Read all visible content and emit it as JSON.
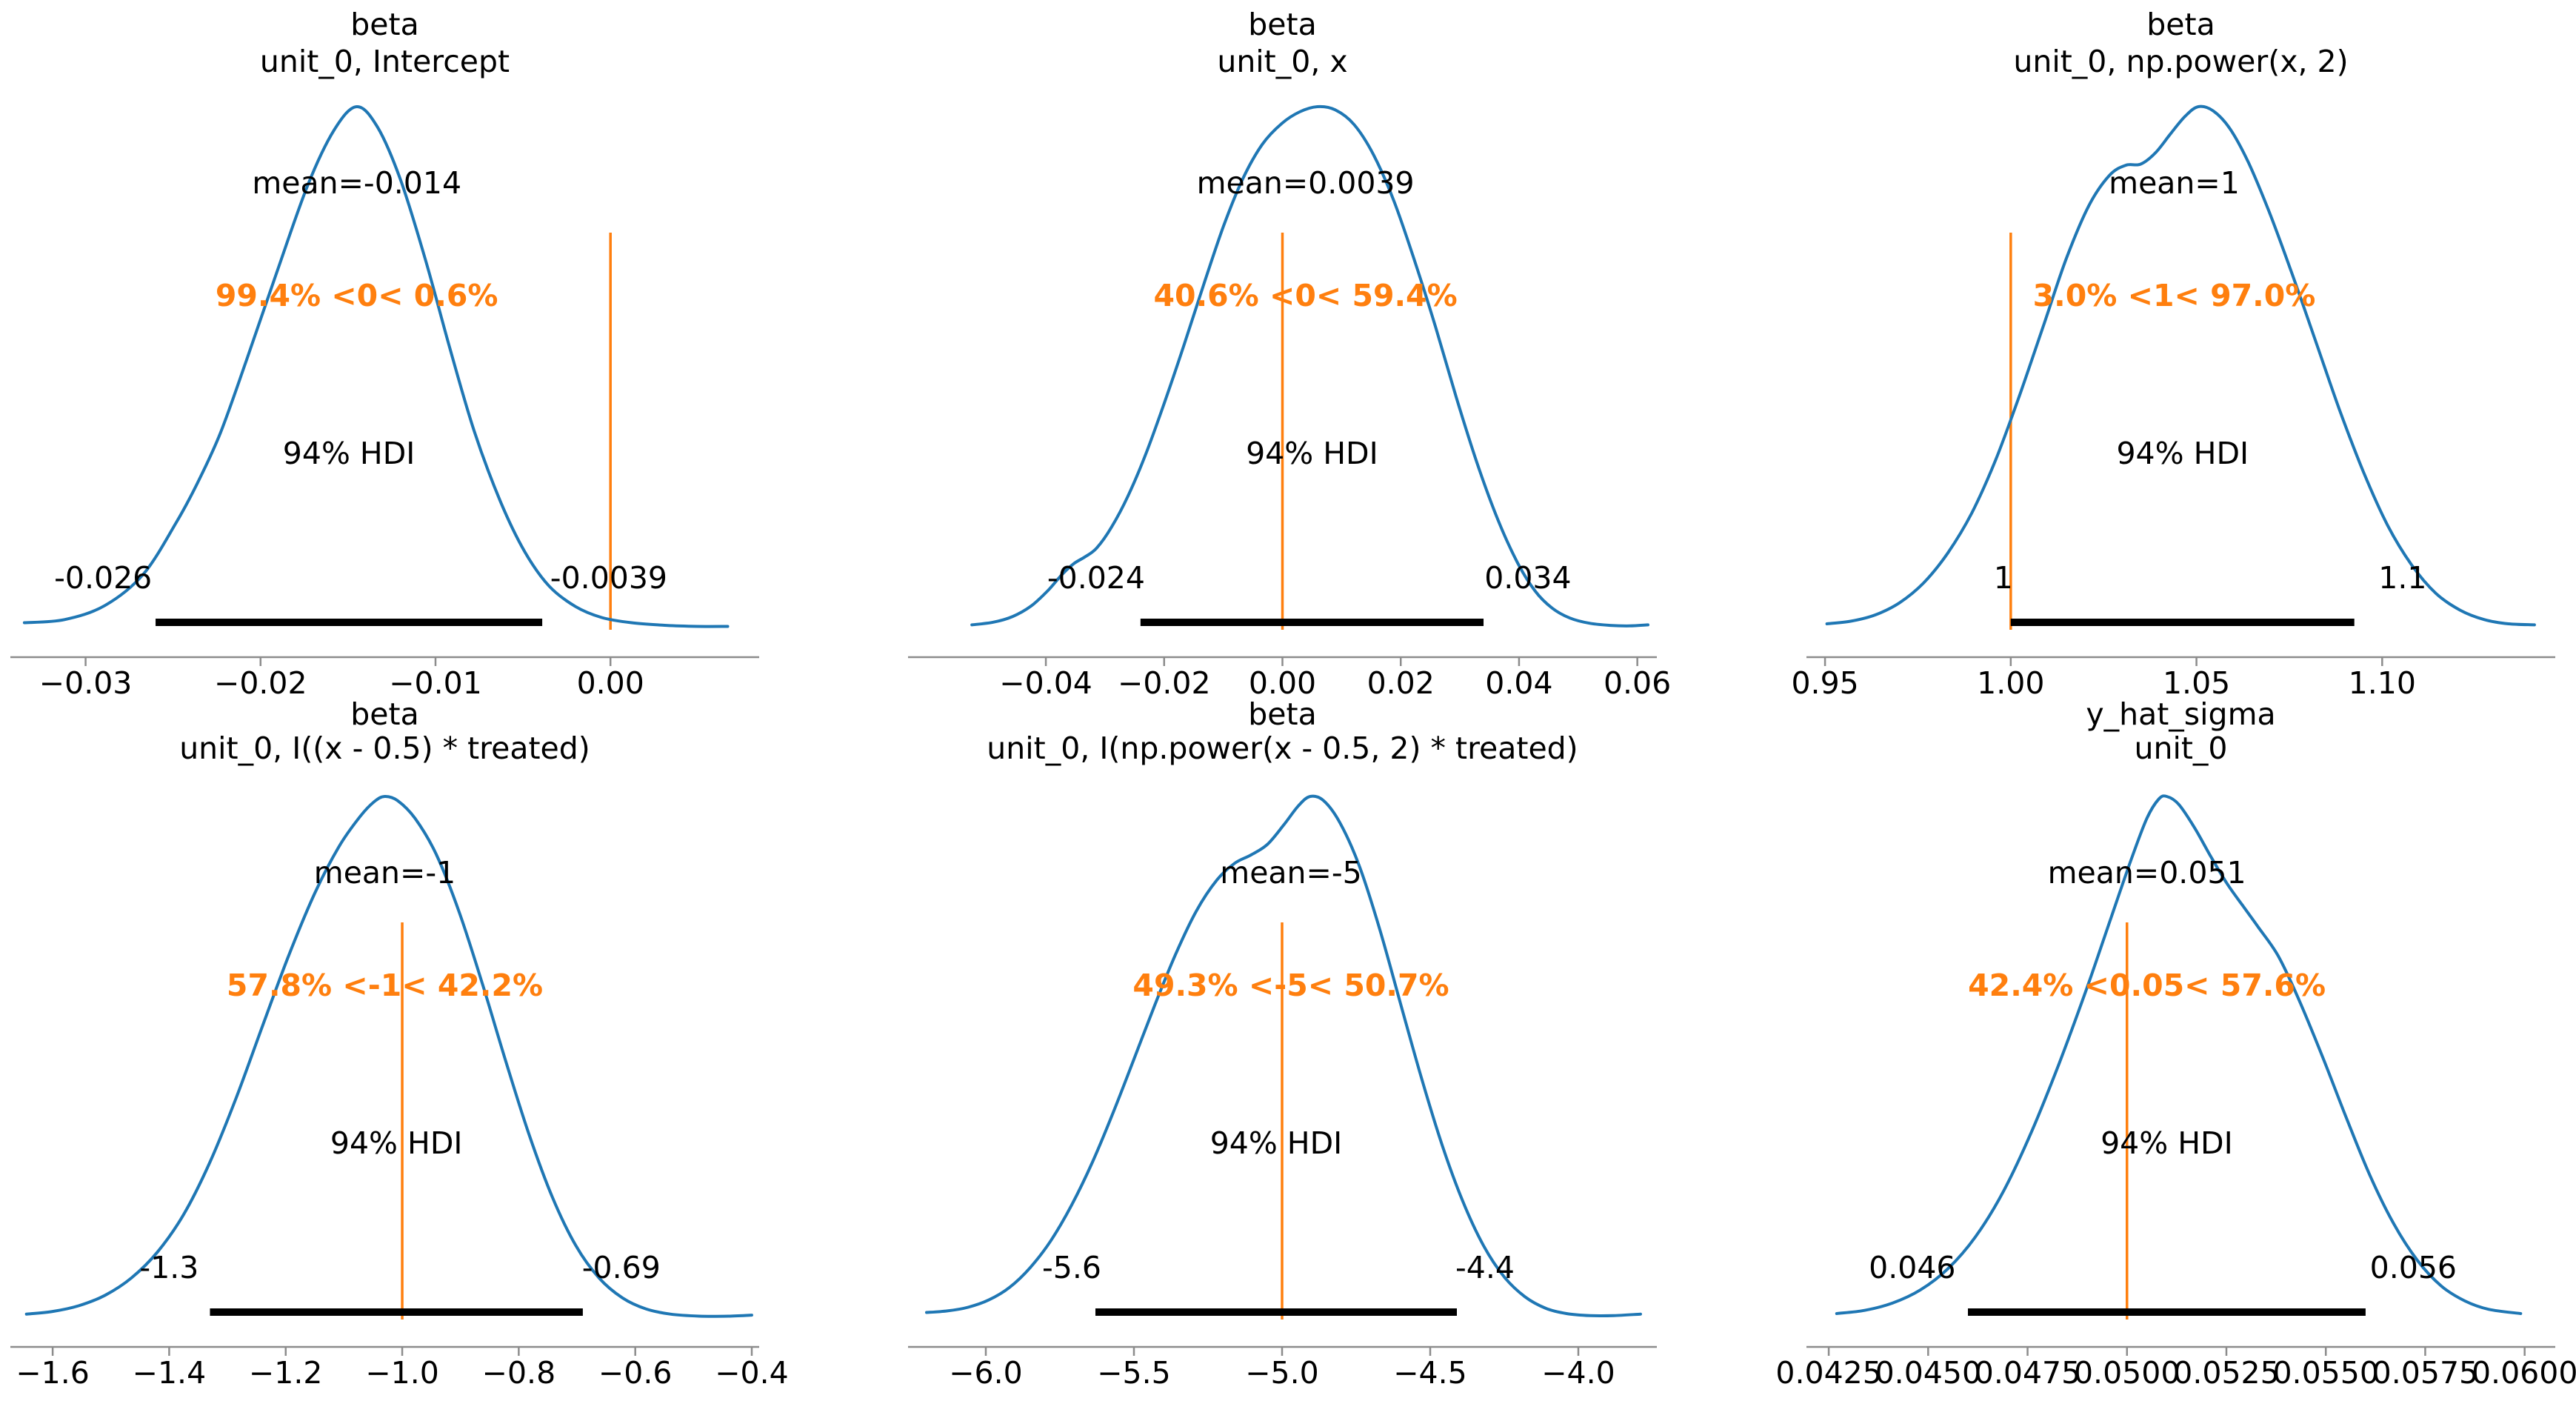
{
  "figure": {
    "background": "#ffffff",
    "kind": "arviz plot_posterior grid (3 columns x 2 rows)"
  },
  "style": {
    "curve_color": "#1f77b4",
    "ref_color": "#ff7f0e",
    "hdi_bar_color": "#000000",
    "axis_color": "#8c8c8c",
    "text_color": "#000000",
    "font_size": 41,
    "title_font_size": 41,
    "curve_width": 4,
    "ref_line_width": 3.5,
    "axis_line_width": 2.5,
    "hdi_bar_height": 10
  },
  "chart_data": [
    {
      "type": "area",
      "title": [
        "beta",
        "unit_0, Intercept"
      ],
      "mean_label": "mean=-0.014",
      "mean_x": -0.0145,
      "ref_value": 0.0,
      "ref_label": "99.4% <0< 0.6%",
      "hdi_text": "94% HDI",
      "hdi": [
        -0.026,
        -0.0039
      ],
      "hdi_labels": [
        "-0.026",
        "-0.0039"
      ],
      "hdi_label_x": [
        -0.029,
        -0.0001
      ],
      "xlim": [
        -0.0343,
        0.0085
      ],
      "xticks": [
        {
          "v": -0.03,
          "label": "−0.03"
        },
        {
          "v": -0.02,
          "label": "−0.02"
        },
        {
          "v": -0.01,
          "label": "−0.01"
        },
        {
          "v": 0.0,
          "label": "0.00"
        }
      ],
      "curve": [
        [
          -0.0335,
          0.012
        ],
        [
          -0.0312,
          0.018
        ],
        [
          -0.0289,
          0.045
        ],
        [
          -0.0267,
          0.105
        ],
        [
          -0.0248,
          0.205
        ],
        [
          -0.0236,
          0.28
        ],
        [
          -0.0223,
          0.375
        ],
        [
          -0.0208,
          0.515
        ],
        [
          -0.0191,
          0.68
        ],
        [
          -0.0173,
          0.85
        ],
        [
          -0.0158,
          0.955
        ],
        [
          -0.0145,
          1.0
        ],
        [
          -0.0133,
          0.96
        ],
        [
          -0.012,
          0.86
        ],
        [
          -0.0106,
          0.71
        ],
        [
          -0.0092,
          0.54
        ],
        [
          -0.0078,
          0.38
        ],
        [
          -0.0063,
          0.245
        ],
        [
          -0.0049,
          0.148
        ],
        [
          -0.0035,
          0.082
        ],
        [
          -0.002,
          0.043
        ],
        [
          -0.0005,
          0.022
        ],
        [
          0.0012,
          0.012
        ],
        [
          0.0032,
          0.007
        ],
        [
          0.005,
          0.005
        ],
        [
          0.0067,
          0.005
        ]
      ]
    },
    {
      "type": "area",
      "title": [
        "beta",
        "unit_0, x"
      ],
      "mean_label": "mean=0.0039",
      "mean_x": 0.0039,
      "ref_value": 0.0,
      "ref_label": "40.6% <0< 59.4%",
      "hdi_text": "94% HDI",
      "hdi": [
        -0.024,
        0.034
      ],
      "hdi_labels": [
        "-0.024",
        "0.034"
      ],
      "hdi_label_x": [
        -0.0315,
        0.0415
      ],
      "xlim": [
        -0.0633,
        0.0633
      ],
      "xticks": [
        {
          "v": -0.04,
          "label": "−0.04"
        },
        {
          "v": -0.02,
          "label": "−0.02"
        },
        {
          "v": 0.0,
          "label": "0.00"
        },
        {
          "v": 0.02,
          "label": "0.02"
        },
        {
          "v": 0.04,
          "label": "0.04"
        },
        {
          "v": 0.06,
          "label": "0.06"
        }
      ],
      "curve": [
        [
          -0.0525,
          0.008
        ],
        [
          -0.0489,
          0.013
        ],
        [
          -0.0456,
          0.024
        ],
        [
          -0.0425,
          0.044
        ],
        [
          -0.0397,
          0.073
        ],
        [
          -0.0373,
          0.104
        ],
        [
          -0.0353,
          0.125
        ],
        [
          -0.0334,
          0.138
        ],
        [
          -0.0314,
          0.155
        ],
        [
          -0.0289,
          0.195
        ],
        [
          -0.0261,
          0.255
        ],
        [
          -0.0231,
          0.335
        ],
        [
          -0.0199,
          0.435
        ],
        [
          -0.0166,
          0.545
        ],
        [
          -0.0133,
          0.66
        ],
        [
          -0.01,
          0.77
        ],
        [
          -0.0067,
          0.862
        ],
        [
          -0.0034,
          0.928
        ],
        [
          -0.0001,
          0.968
        ],
        [
          0.0029,
          0.99
        ],
        [
          0.0059,
          1.0
        ],
        [
          0.0089,
          0.994
        ],
        [
          0.0121,
          0.966
        ],
        [
          0.0154,
          0.908
        ],
        [
          0.0189,
          0.818
        ],
        [
          0.0224,
          0.703
        ],
        [
          0.0259,
          0.578
        ],
        [
          0.0294,
          0.443
        ],
        [
          0.0329,
          0.318
        ],
        [
          0.0364,
          0.21
        ],
        [
          0.0397,
          0.128
        ],
        [
          0.0427,
          0.073
        ],
        [
          0.0456,
          0.04
        ],
        [
          0.0486,
          0.021
        ],
        [
          0.0519,
          0.011
        ],
        [
          0.0554,
          0.007
        ],
        [
          0.0587,
          0.006
        ],
        [
          0.0618,
          0.008
        ]
      ]
    },
    {
      "type": "area",
      "title": [
        "beta",
        "unit_0, np.power(x, 2)"
      ],
      "mean_label": "mean=1",
      "mean_x": 1.044,
      "ref_value": 1.0,
      "ref_label": "3.0% <1< 97.0%",
      "hdi_text": "94% HDI",
      "hdi": [
        1.0,
        1.0925
      ],
      "hdi_labels": [
        "1",
        "1.1"
      ],
      "hdi_label_x": [
        0.998,
        1.1055
      ],
      "xlim": [
        0.945,
        1.1466
      ],
      "xticks": [
        {
          "v": 0.95,
          "label": "0.95"
        },
        {
          "v": 1.0,
          "label": "1.00"
        },
        {
          "v": 1.05,
          "label": "1.05"
        },
        {
          "v": 1.1,
          "label": "1.10"
        }
      ],
      "curve": [
        [
          0.9505,
          0.01
        ],
        [
          0.957,
          0.015
        ],
        [
          0.9635,
          0.027
        ],
        [
          0.97,
          0.05
        ],
        [
          0.9765,
          0.088
        ],
        [
          0.983,
          0.145
        ],
        [
          0.9895,
          0.222
        ],
        [
          0.996,
          0.325
        ],
        [
          1.0025,
          0.45
        ],
        [
          1.009,
          0.585
        ],
        [
          1.015,
          0.71
        ],
        [
          1.021,
          0.81
        ],
        [
          1.0265,
          0.868
        ],
        [
          1.031,
          0.888
        ],
        [
          1.035,
          0.89
        ],
        [
          1.039,
          0.912
        ],
        [
          1.043,
          0.948
        ],
        [
          1.047,
          0.982
        ],
        [
          1.0505,
          1.0
        ],
        [
          1.0545,
          0.992
        ],
        [
          1.059,
          0.958
        ],
        [
          1.064,
          0.893
        ],
        [
          1.0695,
          0.8
        ],
        [
          1.0755,
          0.685
        ],
        [
          1.082,
          0.553
        ],
        [
          1.0885,
          0.42
        ],
        [
          1.095,
          0.3
        ],
        [
          1.1015,
          0.198
        ],
        [
          1.108,
          0.122
        ],
        [
          1.1145,
          0.068
        ],
        [
          1.121,
          0.036
        ],
        [
          1.1275,
          0.018
        ],
        [
          1.134,
          0.01
        ],
        [
          1.141,
          0.008
        ]
      ]
    },
    {
      "type": "area",
      "title": [
        "beta",
        "unit_0, I((x - 0.5) * treated)"
      ],
      "mean_label": "mean=-1",
      "mean_x": -1.03,
      "ref_value": -1.0,
      "ref_label": "57.8% <-1< 42.2%",
      "hdi_text": "94% HDI",
      "hdi": [
        -1.33,
        -0.69
      ],
      "hdi_labels": [
        "-1.3",
        "-0.69"
      ],
      "hdi_label_x": [
        -1.4,
        -0.624
      ],
      "xlim": [
        -1.6726,
        -0.3873
      ],
      "xticks": [
        {
          "v": -1.6,
          "label": "−1.6"
        },
        {
          "v": -1.4,
          "label": "−1.4"
        },
        {
          "v": -1.2,
          "label": "−1.2"
        },
        {
          "v": -1.0,
          "label": "−1.0"
        },
        {
          "v": -0.8,
          "label": "−0.8"
        },
        {
          "v": -0.6,
          "label": "−0.6"
        },
        {
          "v": -0.4,
          "label": "−0.4"
        }
      ],
      "curve": [
        [
          -1.645,
          0.009
        ],
        [
          -1.6,
          0.014
        ],
        [
          -1.555,
          0.025
        ],
        [
          -1.51,
          0.045
        ],
        [
          -1.465,
          0.078
        ],
        [
          -1.42,
          0.128
        ],
        [
          -1.375,
          0.2
        ],
        [
          -1.33,
          0.3
        ],
        [
          -1.285,
          0.423
        ],
        [
          -1.24,
          0.56
        ],
        [
          -1.195,
          0.695
        ],
        [
          -1.15,
          0.815
        ],
        [
          -1.108,
          0.905
        ],
        [
          -1.072,
          0.962
        ],
        [
          -1.048,
          0.99
        ],
        [
          -1.03,
          1.0
        ],
        [
          -1.008,
          0.992
        ],
        [
          -0.978,
          0.958
        ],
        [
          -0.942,
          0.89
        ],
        [
          -0.902,
          0.778
        ],
        [
          -0.862,
          0.64
        ],
        [
          -0.822,
          0.492
        ],
        [
          -0.782,
          0.352
        ],
        [
          -0.742,
          0.232
        ],
        [
          -0.702,
          0.14
        ],
        [
          -0.662,
          0.078
        ],
        [
          -0.622,
          0.04
        ],
        [
          -0.582,
          0.019
        ],
        [
          -0.54,
          0.009
        ],
        [
          -0.49,
          0.005
        ],
        [
          -0.44,
          0.005
        ],
        [
          -0.4,
          0.007
        ]
      ]
    },
    {
      "type": "area",
      "title": [
        "beta",
        "unit_0, I(np.power(x - 0.5, 2) * treated)"
      ],
      "mean_label": "mean=-5",
      "mean_x": -4.97,
      "ref_value": -5.0,
      "ref_label": "49.3% <-5< 50.7%",
      "hdi_text": "94% HDI",
      "hdi": [
        -5.63,
        -4.41
      ],
      "hdi_labels": [
        "-5.6",
        "-4.4"
      ],
      "hdi_label_x": [
        -5.71,
        -4.315
      ],
      "xlim": [
        -6.2625,
        -3.735
      ],
      "xticks": [
        {
          "v": -6.0,
          "label": "−6.0"
        },
        {
          "v": -5.5,
          "label": "−5.5"
        },
        {
          "v": -5.0,
          "label": "−5.0"
        },
        {
          "v": -4.5,
          "label": "−4.5"
        },
        {
          "v": -4.0,
          "label": "−4.0"
        }
      ],
      "curve": [
        [
          -6.2,
          0.012
        ],
        [
          -6.13,
          0.015
        ],
        [
          -6.06,
          0.022
        ],
        [
          -5.99,
          0.036
        ],
        [
          -5.92,
          0.06
        ],
        [
          -5.85,
          0.098
        ],
        [
          -5.78,
          0.15
        ],
        [
          -5.71,
          0.218
        ],
        [
          -5.64,
          0.3
        ],
        [
          -5.57,
          0.395
        ],
        [
          -5.5,
          0.497
        ],
        [
          -5.43,
          0.6
        ],
        [
          -5.36,
          0.697
        ],
        [
          -5.29,
          0.78
        ],
        [
          -5.22,
          0.84
        ],
        [
          -5.16,
          0.872
        ],
        [
          -5.105,
          0.888
        ],
        [
          -5.05,
          0.908
        ],
        [
          -4.995,
          0.945
        ],
        [
          -4.945,
          0.982
        ],
        [
          -4.905,
          1.0
        ],
        [
          -4.86,
          0.992
        ],
        [
          -4.805,
          0.95
        ],
        [
          -4.74,
          0.868
        ],
        [
          -4.67,
          0.745
        ],
        [
          -4.6,
          0.603
        ],
        [
          -4.53,
          0.462
        ],
        [
          -4.46,
          0.333
        ],
        [
          -4.39,
          0.225
        ],
        [
          -4.32,
          0.14
        ],
        [
          -4.25,
          0.08
        ],
        [
          -4.18,
          0.042
        ],
        [
          -4.11,
          0.02
        ],
        [
          -4.04,
          0.01
        ],
        [
          -3.96,
          0.006
        ],
        [
          -3.88,
          0.006
        ],
        [
          -3.79,
          0.009
        ]
      ]
    },
    {
      "type": "area",
      "title": [
        "y_hat_sigma",
        "unit_0"
      ],
      "mean_label": "mean=0.051",
      "mean_x": 0.0505,
      "ref_value": 0.05,
      "ref_label": "42.4% <0.05< 57.6%",
      "hdi_text": "94% HDI",
      "hdi": [
        0.046,
        0.056
      ],
      "hdi_labels": [
        "0.046",
        "0.056"
      ],
      "hdi_label_x": [
        0.0446,
        0.0572
      ],
      "xlim": [
        0.04194,
        0.06077
      ],
      "xticks": [
        {
          "v": 0.0425,
          "label": "0.0425"
        },
        {
          "v": 0.045,
          "label": "0.0450"
        },
        {
          "v": 0.0475,
          "label": "0.0475"
        },
        {
          "v": 0.05,
          "label": "0.0500"
        },
        {
          "v": 0.0525,
          "label": "0.0525"
        },
        {
          "v": 0.055,
          "label": "0.0550"
        },
        {
          "v": 0.0575,
          "label": "0.0575"
        },
        {
          "v": 0.06,
          "label": "0.0600"
        }
      ],
      "curve": [
        [
          0.0427,
          0.01
        ],
        [
          0.0434,
          0.016
        ],
        [
          0.0441,
          0.03
        ],
        [
          0.0448,
          0.055
        ],
        [
          0.0455,
          0.096
        ],
        [
          0.0462,
          0.158
        ],
        [
          0.0469,
          0.245
        ],
        [
          0.0476,
          0.358
        ],
        [
          0.0483,
          0.49
        ],
        [
          0.049,
          0.635
        ],
        [
          0.0496,
          0.768
        ],
        [
          0.0501,
          0.878
        ],
        [
          0.0505,
          0.958
        ],
        [
          0.0508,
          0.995
        ],
        [
          0.051,
          1.0
        ],
        [
          0.0513,
          0.985
        ],
        [
          0.0517,
          0.94
        ],
        [
          0.0521,
          0.886
        ],
        [
          0.0525,
          0.835
        ],
        [
          0.0529,
          0.792
        ],
        [
          0.0533,
          0.75
        ],
        [
          0.0538,
          0.695
        ],
        [
          0.0543,
          0.615
        ],
        [
          0.0549,
          0.505
        ],
        [
          0.0555,
          0.388
        ],
        [
          0.0561,
          0.276
        ],
        [
          0.0567,
          0.183
        ],
        [
          0.0573,
          0.112
        ],
        [
          0.0579,
          0.063
        ],
        [
          0.0585,
          0.034
        ],
        [
          0.0591,
          0.018
        ],
        [
          0.0599,
          0.01
        ]
      ]
    }
  ]
}
